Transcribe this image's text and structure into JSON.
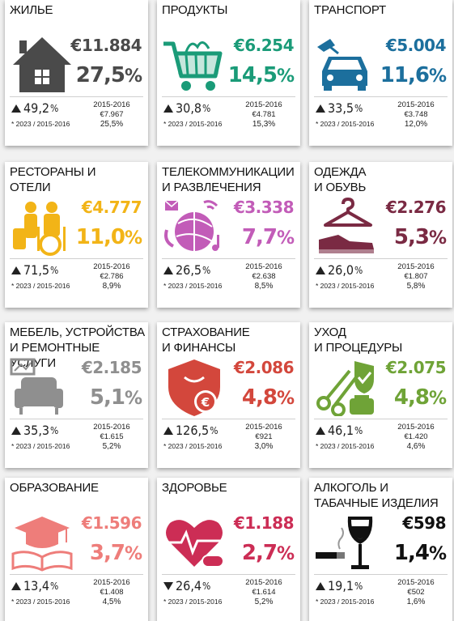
{
  "cards": [
    {
      "title": "ЖИЛЬЕ",
      "amount": "€11.884",
      "share": "27,5",
      "change_dir": "up",
      "change": "49,2",
      "period_label": "2015-2016",
      "prev_amount": "€7.967",
      "prev_share": "25,5",
      "footnote": "* 2023 / 2015-2016",
      "color": "#4a4a4a",
      "icon": "house-icon"
    },
    {
      "title": "ПРОДУКТЫ",
      "amount": "€6.254",
      "share": "14,5",
      "change_dir": "up",
      "change": "30,8",
      "period_label": "2015-2016",
      "prev_amount": "€4.781",
      "prev_share": "15,3",
      "footnote": "* 2023 / 2015-2016",
      "color": "#1a9b78",
      "icon": "shopping-cart-icon"
    },
    {
      "title": "ТРАНСПОРТ",
      "amount": "€5.004",
      "share": "11,6",
      "change_dir": "up",
      "change": "33,5",
      "period_label": "2015-2016",
      "prev_amount": "€3.748",
      "prev_share": "12,0",
      "footnote": "* 2023 / 2015-2016",
      "color": "#1c6f9d",
      "icon": "car-fuel-icon"
    },
    {
      "title": "РЕСТОРАНЫ И\nОТЕЛИ",
      "amount": "€4.777",
      "share": "11,0",
      "change_dir": "up",
      "change": "71,5",
      "period_label": "2015-2016",
      "prev_amount": "€2.786",
      "prev_share": "8,9",
      "footnote": "* 2023 / 2015-2016",
      "color": "#f2b417",
      "icon": "restaurant-hotel-icon"
    },
    {
      "title": "ТЕЛЕКОММУНИКАЦИИ\nИ РАЗВЛЕЧЕНИЯ",
      "amount": "€3.338",
      "share": "7,7",
      "change_dir": "up",
      "change": "26,5",
      "period_label": "2015-2016",
      "prev_amount": "€2.638",
      "prev_share": "8,5",
      "footnote": "* 2023 / 2015-2016",
      "color": "#c25cb8",
      "icon": "telecom-entertainment-icon"
    },
    {
      "title": "ОДЕЖДА\nИ ОБУВЬ",
      "amount": "€2.276",
      "share": "5,3",
      "change_dir": "up",
      "change": "26,0",
      "period_label": "2015-2016",
      "prev_amount": "€1.807",
      "prev_share": "5,8",
      "footnote": "* 2023 / 2015-2016",
      "color": "#7a2a43",
      "icon": "hanger-shoe-icon"
    },
    {
      "title": "МЕБЕЛЬ, УСТРОЙСТВА\nИ РЕМОНТНЫЕ УСЛУГИ",
      "amount": "€2.185",
      "share": "5,1",
      "change_dir": "up",
      "change": "35,3",
      "period_label": "2015-2016",
      "prev_amount": "€1.615",
      "prev_share": "5,2",
      "footnote": "* 2023 / 2015-2016",
      "color": "#8f8f8f",
      "icon": "armchair-icon"
    },
    {
      "title": "СТРАХОВАНИЕ\nИ ФИНАНСЫ",
      "amount": "€2.086",
      "share": "4,8",
      "change_dir": "up",
      "change": "126,5",
      "period_label": "2015-2016",
      "prev_amount": "€921",
      "prev_share": "3,0",
      "footnote": "* 2023 / 2015-2016",
      "color": "#d3473c",
      "icon": "shield-euro-icon"
    },
    {
      "title": "УХОД\nИ ПРОЦЕДУРЫ",
      "amount": "€2.075",
      "share": "4,8",
      "change_dir": "up",
      "change": "46,1",
      "period_label": "2015-2016",
      "prev_amount": "€1.420",
      "prev_share": "4,6",
      "footnote": "* 2023 / 2015-2016",
      "color": "#6fa337",
      "icon": "scissors-care-icon"
    },
    {
      "title": "ОБРАЗОВАНИЕ",
      "amount": "€1.596",
      "share": "3,7",
      "change_dir": "up",
      "change": "13,4",
      "period_label": "2015-2016",
      "prev_amount": "€1.408",
      "prev_share": "4,5",
      "footnote": "* 2023 / 2015-2016",
      "color": "#ee7d7a",
      "icon": "graduation-book-icon"
    },
    {
      "title": "ЗДОРОВЬЕ",
      "amount": "€1.188",
      "share": "2,7",
      "change_dir": "down",
      "change": "26,4",
      "period_label": "2015-2016",
      "prev_amount": "€1.614",
      "prev_share": "5,2",
      "footnote": "* 2023 / 2015-2016",
      "color": "#cc2d55",
      "icon": "heart-pulse-icon"
    },
    {
      "title": "АЛКОГОЛЬ И\nТАБАЧНЫЕ ИЗДЕЛИЯ",
      "amount": "€598",
      "share": "1,4",
      "change_dir": "up",
      "change": "19,1",
      "period_label": "2015-2016",
      "prev_amount": "€502",
      "prev_share": "1,6",
      "footnote": "* 2023 / 2015-2016",
      "color": "#111111",
      "icon": "wine-cigarette-icon"
    }
  ],
  "percent_sign": "%"
}
